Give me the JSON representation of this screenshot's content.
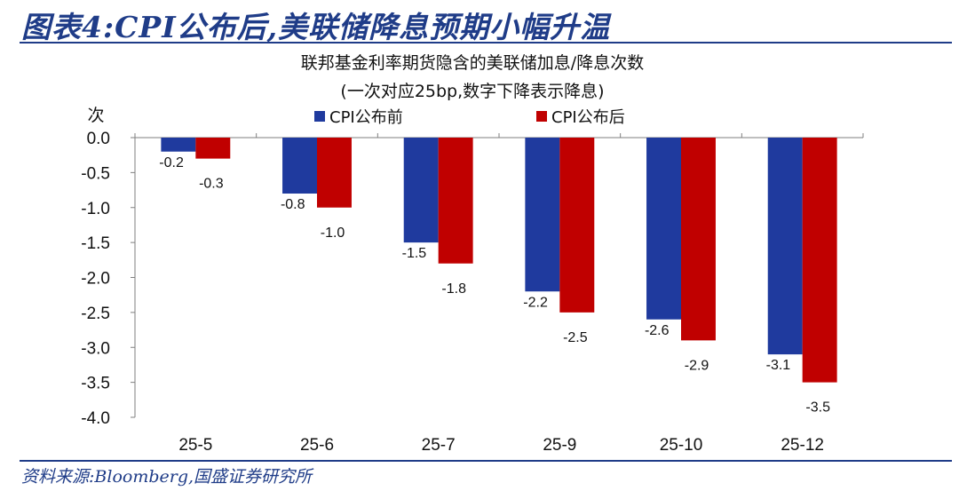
{
  "header": {
    "title": "图表4:CPI公布后,美联储降息预期小幅升温"
  },
  "footer": {
    "source": "资料来源:Bloomberg,国盛证券研究所"
  },
  "chart_data": {
    "type": "bar",
    "title": "联邦基金利率期货隐含的美联储加息/降息次数",
    "subtitle": "(一次对应25bp,数字下降表示降息)",
    "ylabel": "次",
    "xlabel": "",
    "categories": [
      "25-5",
      "25-6",
      "25-7",
      "25-9",
      "25-10",
      "25-12"
    ],
    "series": [
      {
        "name": "CPI公布前",
        "color": "#1f3a9e",
        "values": [
          -0.2,
          -0.8,
          -1.5,
          -2.2,
          -2.6,
          -3.1
        ],
        "labels": [
          "-0.2",
          "-0.8",
          "-1.5",
          "-2.2",
          "-2.6",
          "-3.1"
        ]
      },
      {
        "name": "CPI公布后",
        "color": "#c00000",
        "values": [
          -0.3,
          -1.0,
          -1.8,
          -2.5,
          -2.9,
          -3.5
        ],
        "labels": [
          "-0.3",
          "-1.0",
          "-1.8",
          "-2.5",
          "-2.9",
          "-3.5"
        ]
      }
    ],
    "ylim": [
      -4.0,
      0.0
    ],
    "yticks": [
      0.0,
      -0.5,
      -1.0,
      -1.5,
      -2.0,
      -2.5,
      -3.0,
      -3.5,
      -4.0
    ],
    "ytick_labels": [
      "0.0",
      "-0.5",
      "-1.0",
      "-1.5",
      "-2.0",
      "-2.5",
      "-3.0",
      "-3.5",
      "-4.0"
    ],
    "grid": false,
    "legend_position": "top-center"
  }
}
